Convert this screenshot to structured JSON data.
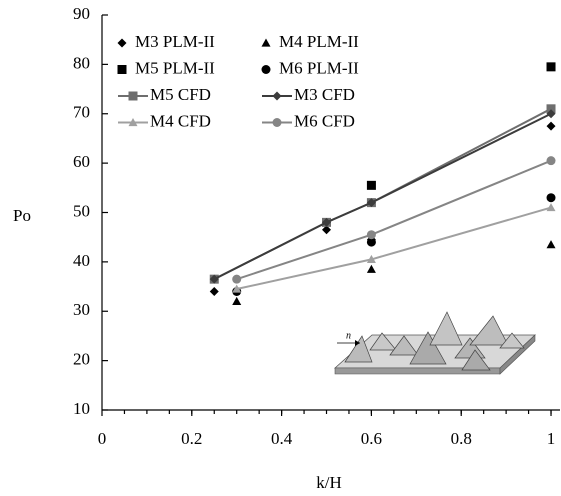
{
  "chart_data": {
    "type": "scatter",
    "x_label": "k/H",
    "y_label": "Po",
    "xlim": [
      0,
      1.02
    ],
    "ylim": [
      10,
      90
    ],
    "xticks": [
      0,
      0.2,
      0.4,
      0.6,
      0.8,
      1
    ],
    "yticks": [
      10,
      20,
      30,
      40,
      50,
      60,
      70,
      80,
      90
    ],
    "legend": "upper left",
    "inset_label": "n",
    "series": [
      {
        "name": "M3 PLM-II",
        "marker": "diamond",
        "line": false,
        "color": "#000000",
        "x": [
          0.25,
          0.5,
          0.6,
          1
        ],
        "values": [
          34,
          46.5,
          44.5,
          67.5
        ]
      },
      {
        "name": "M4 PLM-II",
        "marker": "triangle",
        "line": false,
        "color": "#000000",
        "x": [
          0.3,
          0.6,
          1
        ],
        "values": [
          32,
          38.5,
          43.5
        ]
      },
      {
        "name": "M5 PLM-II",
        "marker": "square",
        "line": false,
        "color": "#000000",
        "x": [
          0.6,
          1
        ],
        "values": [
          55.5,
          79.5
        ]
      },
      {
        "name": "M6 PLM-II",
        "marker": "circle",
        "line": false,
        "color": "#000000",
        "x": [
          0.3,
          0.6,
          1
        ],
        "values": [
          34,
          44,
          53
        ]
      },
      {
        "name": "M5 CFD",
        "marker": "square",
        "line": true,
        "color": "#6e6e6e",
        "x": [
          0.25,
          0.5,
          0.6,
          1
        ],
        "values": [
          36.5,
          48,
          52,
          71
        ]
      },
      {
        "name": "M3 CFD",
        "marker": "diamond",
        "line": true,
        "color": "#3c3c3c",
        "x": [
          0.25,
          0.5,
          0.6,
          1
        ],
        "values": [
          36.5,
          48,
          52,
          70
        ]
      },
      {
        "name": "M4 CFD",
        "marker": "triangle",
        "line": true,
        "color": "#a0a0a0",
        "x": [
          0.3,
          0.6,
          1
        ],
        "values": [
          34.5,
          40.5,
          51
        ]
      },
      {
        "name": "M6 CFD",
        "marker": "circle",
        "line": true,
        "color": "#858585",
        "x": [
          0.3,
          0.6,
          1
        ],
        "values": [
          36.5,
          45.5,
          60.5
        ]
      }
    ]
  }
}
